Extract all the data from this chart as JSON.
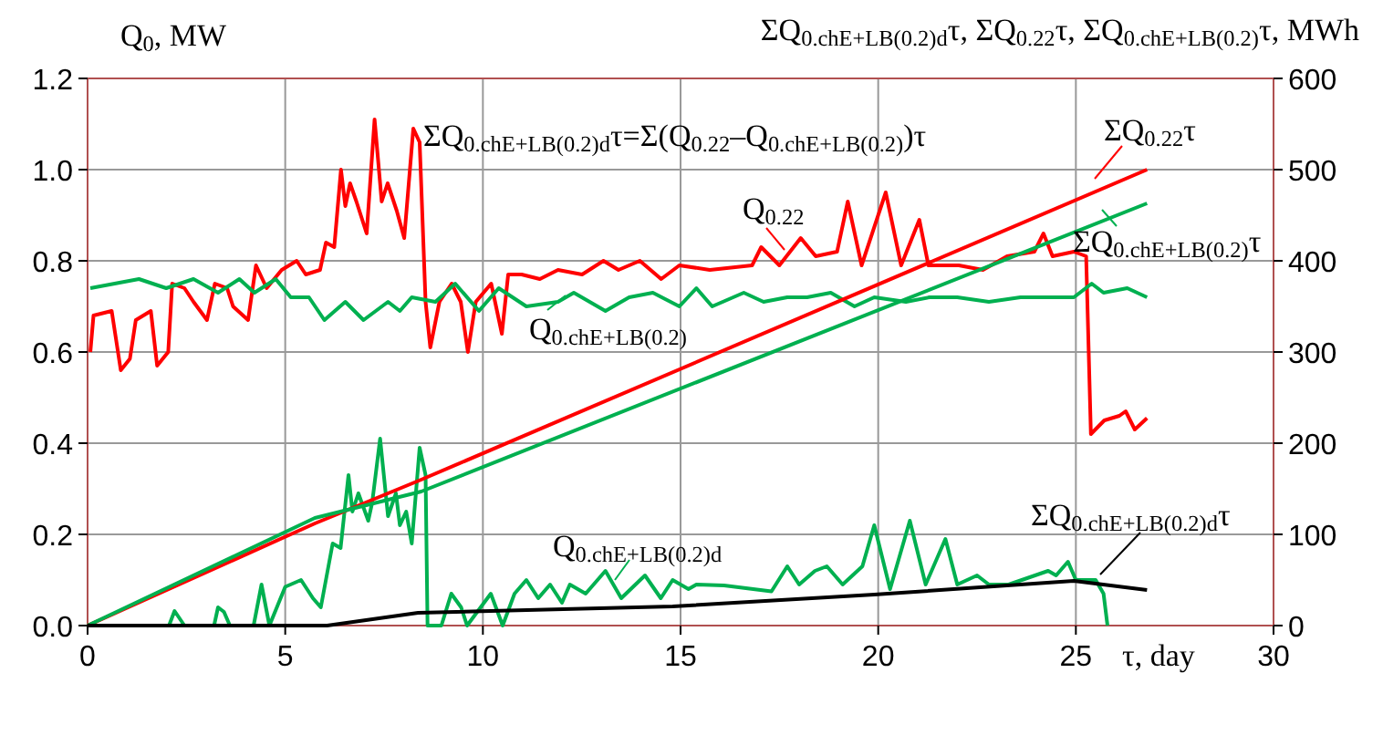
{
  "chart_data": {
    "type": "line",
    "ylabel": "Q$_{0}$, MW",
    "y2label": "ΣQ$_{0.chE+LB(0.2)d}$τ, ΣQ$_{0.22}$τ, ΣQ$_{0.chE+LB(0.2)}$τ, MWh",
    "xlabel": "τ, day",
    "annotations": [
      "ΣQ$_{0.chE+LB(0.2)d}$τ=Σ(Q$_{0.22}$–Q$_{0.chE+LB(0.2)}$)τ"
    ],
    "xlim": [
      0,
      30
    ],
    "xticks": [
      0,
      5,
      10,
      15,
      20,
      25,
      30
    ],
    "ylim": [
      0,
      1.2
    ],
    "yticks": [
      {
        "value": 0,
        "label": "0.0"
      },
      0.2,
      0.4,
      0.6,
      0.8,
      {
        "value": 1,
        "label": "1.0"
      },
      1.2
    ],
    "y2lim": [
      0,
      600
    ],
    "y2ticks": [
      0,
      100,
      200,
      300,
      400,
      500,
      600
    ],
    "grid": true,
    "marker": "none",
    "line_style": "solid",
    "series": [
      {
        "name": "Q$_{0.22}$",
        "color": "#ff0000",
        "x": [
          0.07,
          0.15,
          0.61,
          0.84,
          1.07,
          1.22,
          1.6,
          1.76,
          2.04,
          2.14,
          2.45,
          2.68,
          3.02,
          3.22,
          3.53,
          3.68,
          4.06,
          4.26,
          4.53,
          4.91,
          5.29,
          5.52,
          5.88,
          6.03,
          6.24,
          6.41,
          6.52,
          6.64,
          6.8,
          7.06,
          7.26,
          7.44,
          7.59,
          7.82,
          8.01,
          8.24,
          8.4,
          8.55,
          8.67,
          8.9,
          9.21,
          9.44,
          9.62,
          9.82,
          10.21,
          10.48,
          10.64,
          10.98,
          11.44,
          11.9,
          12.51,
          13.05,
          13.43,
          13.97,
          14.51,
          14.97,
          15.74,
          16.81,
          17.04,
          17.5,
          18.04,
          18.42,
          18.96,
          19.23,
          19.58,
          20.19,
          20.58,
          21.04,
          21.27,
          22.04,
          22.65,
          23.26,
          23.95,
          24.18,
          24.41,
          24.95,
          25.26,
          25.38,
          25.72,
          26.1,
          26.26,
          26.49,
          26.8
        ],
        "values": [
          0.6,
          0.68,
          0.69,
          0.56,
          0.585,
          0.67,
          0.69,
          0.57,
          0.6,
          0.75,
          0.74,
          0.71,
          0.67,
          0.75,
          0.74,
          0.7,
          0.67,
          0.79,
          0.74,
          0.78,
          0.8,
          0.77,
          0.78,
          0.84,
          0.83,
          1.0,
          0.92,
          0.97,
          0.93,
          0.86,
          1.11,
          0.93,
          0.97,
          0.91,
          0.85,
          1.09,
          1.06,
          0.71,
          0.61,
          0.71,
          0.75,
          0.71,
          0.6,
          0.71,
          0.75,
          0.64,
          0.77,
          0.77,
          0.76,
          0.78,
          0.77,
          0.8,
          0.78,
          0.8,
          0.76,
          0.79,
          0.78,
          0.79,
          0.83,
          0.79,
          0.85,
          0.81,
          0.82,
          0.93,
          0.79,
          0.95,
          0.79,
          0.89,
          0.79,
          0.79,
          0.78,
          0.81,
          0.82,
          0.86,
          0.81,
          0.82,
          0.81,
          0.42,
          0.45,
          0.46,
          0.47,
          0.43,
          0.455
        ]
      },
      {
        "name": "Q$_{0.chE+LB(0.2)}$",
        "color": "#00b050",
        "x": [
          0.07,
          1.3,
          1.99,
          2.68,
          3.3,
          3.84,
          4.22,
          4.76,
          5.14,
          5.6,
          5.99,
          6.52,
          6.98,
          7.6,
          7.9,
          8.2,
          8.8,
          9.3,
          9.9,
          10.4,
          11.1,
          11.9,
          12.3,
          13.1,
          13.7,
          14.3,
          14.97,
          15.4,
          15.8,
          16.6,
          17.1,
          17.7,
          18.2,
          18.8,
          19.4,
          19.9,
          20.7,
          21.3,
          22,
          22.8,
          23.6,
          24.3,
          24.95,
          25.4,
          25.7,
          26.3,
          26.8
        ],
        "values": [
          0.74,
          0.76,
          0.74,
          0.76,
          0.73,
          0.76,
          0.73,
          0.76,
          0.72,
          0.72,
          0.67,
          0.71,
          0.67,
          0.71,
          0.69,
          0.72,
          0.71,
          0.75,
          0.69,
          0.74,
          0.7,
          0.71,
          0.73,
          0.69,
          0.72,
          0.73,
          0.7,
          0.74,
          0.7,
          0.73,
          0.71,
          0.72,
          0.72,
          0.73,
          0.7,
          0.72,
          0.71,
          0.72,
          0.72,
          0.71,
          0.72,
          0.72,
          0.72,
          0.75,
          0.73,
          0.74,
          0.72
        ]
      },
      {
        "name": "Q$_{0.chE+LB(0.2)d}$",
        "color": "#00b050",
        "x": [
          0,
          2.06,
          2.2,
          2.45,
          3.2,
          3.3,
          3.45,
          3.6,
          4.2,
          4.4,
          4.6,
          5,
          5.4,
          5.7,
          5.9,
          6.2,
          6.4,
          6.6,
          6.7,
          6.85,
          7.1,
          7.2,
          7.4,
          7.6,
          7.8,
          7.9,
          8.06,
          8.2,
          8.4,
          8.55,
          8.6,
          8.95,
          9.2,
          9.45,
          9.6,
          10.2,
          10.5,
          10.8,
          11.1,
          11.4,
          11.7,
          12,
          12.2,
          12.6,
          13.1,
          13.5,
          14.1,
          14.5,
          14.8,
          15.2,
          15.4,
          16.1,
          17.3,
          17.7,
          18,
          18.4,
          18.7,
          19.1,
          19.6,
          19.9,
          20.3,
          20.8,
          21.2,
          21.7,
          22,
          22.5,
          22.8,
          23.3,
          24.3,
          24.5,
          24.8,
          25,
          25.5,
          25.7,
          25.8
        ],
        "values": [
          0,
          0,
          0.032,
          0,
          0,
          0.04,
          0.03,
          0,
          0,
          0.09,
          0,
          0.085,
          0.1,
          0.06,
          0.04,
          0.18,
          0.17,
          0.33,
          0.25,
          0.29,
          0.23,
          0.27,
          0.41,
          0.24,
          0.29,
          0.22,
          0.25,
          0.18,
          0.39,
          0.33,
          0,
          0,
          0.07,
          0.04,
          0,
          0.07,
          0,
          0.07,
          0.1,
          0.06,
          0.09,
          0.05,
          0.09,
          0.07,
          0.12,
          0.06,
          0.11,
          0.06,
          0.1,
          0.08,
          0.09,
          0.088,
          0.075,
          0.13,
          0.09,
          0.12,
          0.13,
          0.09,
          0.13,
          0.22,
          0.08,
          0.23,
          0.09,
          0.19,
          0.09,
          0.11,
          0.09,
          0.09,
          0.12,
          0.11,
          0.14,
          0.1,
          0.1,
          0.07,
          0
        ]
      },
      {
        "name": "ΣQ$_{0.22}$τ",
        "color": "#ff0000",
        "axis": "y2",
        "x": [
          0,
          5.75,
          8.44,
          26.8
        ],
        "values": [
          0,
          112,
          160,
          500
        ]
      },
      {
        "name": "ΣQ$_{0.chE+LB(0.2)}$τ",
        "color": "#00b050",
        "axis": "y2",
        "x": [
          0,
          5.75,
          8.44,
          26.8
        ],
        "values": [
          0,
          118,
          147,
          463
        ]
      },
      {
        "name": "ΣQ$_{0.chE+LB(0.2)d}$τ",
        "color": "#000000",
        "axis": "y2",
        "x": [
          0,
          6.06,
          8.36,
          14.8,
          19.9,
          24.95,
          26.8
        ],
        "values": [
          0,
          0,
          14,
          21,
          34,
          49,
          39
        ]
      }
    ]
  }
}
